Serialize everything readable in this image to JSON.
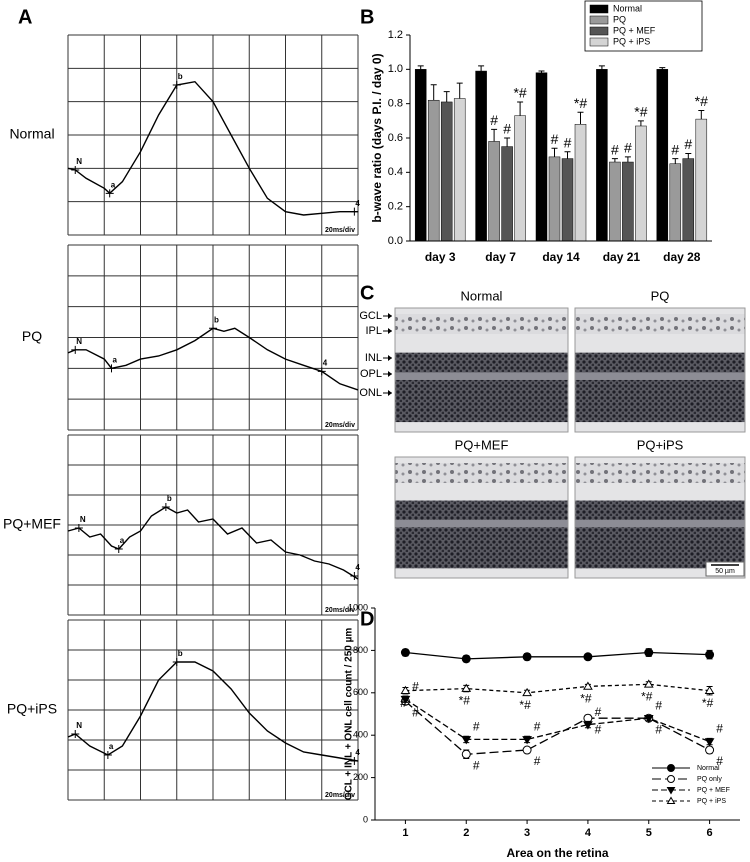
{
  "panel_labels": [
    "A",
    "B",
    "C",
    "D"
  ],
  "histology": {
    "titles": [
      "Normal",
      "PQ",
      "PQ+MEF",
      "PQ+iPS"
    ],
    "layers": [
      "GCL",
      "IPL",
      "INL",
      "OPL",
      "ONL"
    ],
    "scale_bar": "50 µm"
  },
  "chart_data": [
    {
      "type": "trace",
      "label": "Normal",
      "scale_label": "20ms/div",
      "xlim": [
        0,
        8
      ],
      "ylim": [
        0,
        6
      ],
      "x": [
        0,
        0.2,
        0.5,
        1.0,
        1.15,
        1.5,
        2,
        2.5,
        3,
        3.5,
        4,
        4.5,
        5,
        5.5,
        6,
        6.5,
        7,
        7.5,
        8
      ],
      "values": [
        2.0,
        1.95,
        1.7,
        1.4,
        1.25,
        1.6,
        2.5,
        3.6,
        4.5,
        4.6,
        4.0,
        3.0,
        2.0,
        1.1,
        0.7,
        0.6,
        0.65,
        0.7,
        0.7
      ],
      "markers": [
        {
          "label": "N",
          "x": 0.2,
          "y": 1.95
        },
        {
          "label": "a",
          "x": 1.15,
          "y": 1.25
        },
        {
          "label": "b",
          "x": 3.0,
          "y": 4.5
        },
        {
          "label": "4",
          "x": 7.9,
          "y": 0.7
        }
      ]
    },
    {
      "type": "trace",
      "label": "PQ",
      "scale_label": "20ms/div",
      "xlim": [
        0,
        8
      ],
      "ylim": [
        0,
        6
      ],
      "x": [
        0,
        0.2,
        0.5,
        1,
        1.2,
        1.6,
        2,
        2.5,
        3,
        3.5,
        4,
        4.3,
        4.6,
        5,
        5.5,
        6,
        6.5,
        7,
        7.5,
        8
      ],
      "values": [
        2.5,
        2.6,
        2.6,
        2.3,
        2.0,
        2.1,
        2.3,
        2.4,
        2.6,
        2.9,
        3.3,
        3.2,
        3.3,
        3.0,
        2.6,
        2.3,
        2.1,
        1.9,
        1.5,
        1.3
      ],
      "markers": [
        {
          "label": "N",
          "x": 0.2,
          "y": 2.6
        },
        {
          "label": "a",
          "x": 1.2,
          "y": 2.0
        },
        {
          "label": "b",
          "x": 4.0,
          "y": 3.3
        },
        {
          "label": "4",
          "x": 7.0,
          "y": 1.9
        }
      ]
    },
    {
      "type": "trace",
      "label": "PQ+MEF",
      "scale_label": "20ms/div",
      "xlim": [
        0,
        8
      ],
      "ylim": [
        0,
        6
      ],
      "x": [
        0,
        0.3,
        0.6,
        0.9,
        1.2,
        1.4,
        1.7,
        2,
        2.3,
        2.7,
        3.0,
        3.3,
        3.6,
        4,
        4.4,
        4.8,
        5.2,
        5.6,
        6,
        6.4,
        6.8,
        7.2,
        7.6,
        8
      ],
      "values": [
        2.8,
        2.9,
        2.6,
        2.7,
        2.3,
        2.2,
        2.6,
        2.8,
        3.3,
        3.6,
        3.4,
        3.5,
        3.1,
        3.2,
        2.7,
        2.9,
        2.4,
        2.5,
        2.1,
        2.0,
        1.8,
        1.7,
        1.5,
        1.2
      ],
      "markers": [
        {
          "label": "N",
          "x": 0.3,
          "y": 2.9
        },
        {
          "label": "a",
          "x": 1.4,
          "y": 2.2
        },
        {
          "label": "b",
          "x": 2.7,
          "y": 3.6
        },
        {
          "label": "4",
          "x": 7.9,
          "y": 1.3
        }
      ]
    },
    {
      "type": "trace",
      "label": "PQ+iPS",
      "scale_label": "20ms/div",
      "xlim": [
        0,
        8
      ],
      "ylim": [
        0,
        6
      ],
      "x": [
        0,
        0.2,
        0.6,
        1.1,
        1.5,
        2,
        2.5,
        3,
        3.5,
        4,
        4.5,
        5,
        5.5,
        6,
        6.5,
        7,
        7.5,
        8
      ],
      "values": [
        2.1,
        2.2,
        1.8,
        1.5,
        1.8,
        2.8,
        4.0,
        4.6,
        4.6,
        4.3,
        3.7,
        2.9,
        2.3,
        1.9,
        1.6,
        1.5,
        1.4,
        1.3
      ],
      "markers": [
        {
          "label": "N",
          "x": 0.2,
          "y": 2.2
        },
        {
          "label": "a",
          "x": 1.1,
          "y": 1.5
        },
        {
          "label": "b",
          "x": 3.0,
          "y": 4.6
        },
        {
          "label": "4",
          "x": 7.9,
          "y": 1.3
        }
      ]
    },
    {
      "type": "bar",
      "ylabel": "b-wave ratio (days P.I. / day 0)",
      "categories": [
        "day 3",
        "day 7",
        "day 14",
        "day 21",
        "day 28"
      ],
      "series": [
        {
          "name": "Normal",
          "color": "#000000",
          "values": [
            1.0,
            0.99,
            0.98,
            1.0,
            1.0
          ],
          "errors": [
            0.02,
            0.03,
            0.01,
            0.02,
            0.01
          ],
          "annotations": [
            null,
            null,
            null,
            null,
            null
          ]
        },
        {
          "name": "PQ",
          "color": "#9a9a9a",
          "values": [
            0.82,
            0.58,
            0.49,
            0.46,
            0.45
          ],
          "errors": [
            0.09,
            0.07,
            0.05,
            0.02,
            0.03
          ],
          "annotations": [
            null,
            "#",
            "#",
            "#",
            "#"
          ]
        },
        {
          "name": "PQ + MEF",
          "color": "#555555",
          "values": [
            0.81,
            0.55,
            0.48,
            0.46,
            0.48
          ],
          "errors": [
            0.06,
            0.05,
            0.04,
            0.03,
            0.03
          ],
          "annotations": [
            null,
            "#",
            "#",
            "#",
            "#"
          ]
        },
        {
          "name": "PQ + iPS",
          "color": "#d4d4d4",
          "values": [
            0.83,
            0.73,
            0.68,
            0.67,
            0.71
          ],
          "errors": [
            0.09,
            0.08,
            0.07,
            0.03,
            0.05
          ],
          "annotations": [
            null,
            "*#",
            "*#",
            "*#",
            "*#"
          ]
        }
      ],
      "ylim": [
        0,
        1.2
      ],
      "yticks": [
        {
          "value": 0,
          "label": "0.0"
        },
        0.2,
        0.4,
        0.6,
        0.8,
        {
          "value": 1,
          "label": "1.0"
        },
        1.2
      ],
      "grid": false,
      "legend": "top-right"
    },
    {
      "type": "line",
      "ylabel": "GCL + INL + ONL cell count / 250 µm",
      "xlabel": "Area on the retina",
      "x": [
        1,
        2,
        3,
        4,
        5,
        6
      ],
      "series": [
        {
          "name": "Normal",
          "color": "#000000",
          "marker": "circle",
          "filled": true,
          "dash": "solid",
          "values": [
            790,
            760,
            770,
            770,
            790,
            780
          ],
          "errors": [
            15,
            15,
            15,
            10,
            18,
            20
          ],
          "annotations": [
            null,
            null,
            null,
            null,
            null,
            null
          ]
        },
        {
          "name": "PQ only",
          "color": "#000000",
          "marker": "circle",
          "filled": false,
          "dash": "long-dash",
          "values": [
            560,
            310,
            330,
            480,
            480,
            330
          ],
          "errors": [
            15,
            20,
            12,
            15,
            12,
            15
          ],
          "annotations": [
            "#",
            "#",
            "#",
            "#",
            "#",
            "#"
          ]
        },
        {
          "name": "PQ + MEF",
          "color": "#000000",
          "marker": "triangle-down",
          "filled": true,
          "dash": "dash",
          "values": [
            570,
            380,
            380,
            450,
            480,
            370
          ],
          "errors": [
            15,
            15,
            15,
            15,
            12,
            15
          ],
          "annotations": [
            "#",
            "#",
            "#",
            "#",
            "#",
            "#"
          ]
        },
        {
          "name": "PQ + iPS",
          "color": "#000000",
          "marker": "triangle-up",
          "filled": false,
          "dash": "short-dash",
          "values": [
            610,
            620,
            600,
            630,
            640,
            610
          ],
          "errors": [
            15,
            15,
            12,
            10,
            12,
            20
          ],
          "annotations": [
            "#",
            "*#",
            "*#",
            "*#",
            "*#",
            "*#"
          ]
        }
      ],
      "xlim": [
        0.5,
        6.5
      ],
      "ylim": [
        0,
        1000
      ],
      "xticks": [
        1,
        2,
        3,
        4,
        5,
        6
      ],
      "yticks": [
        0,
        200,
        400,
        600,
        800,
        1000
      ],
      "grid": false,
      "legend": "bottom-right"
    }
  ]
}
